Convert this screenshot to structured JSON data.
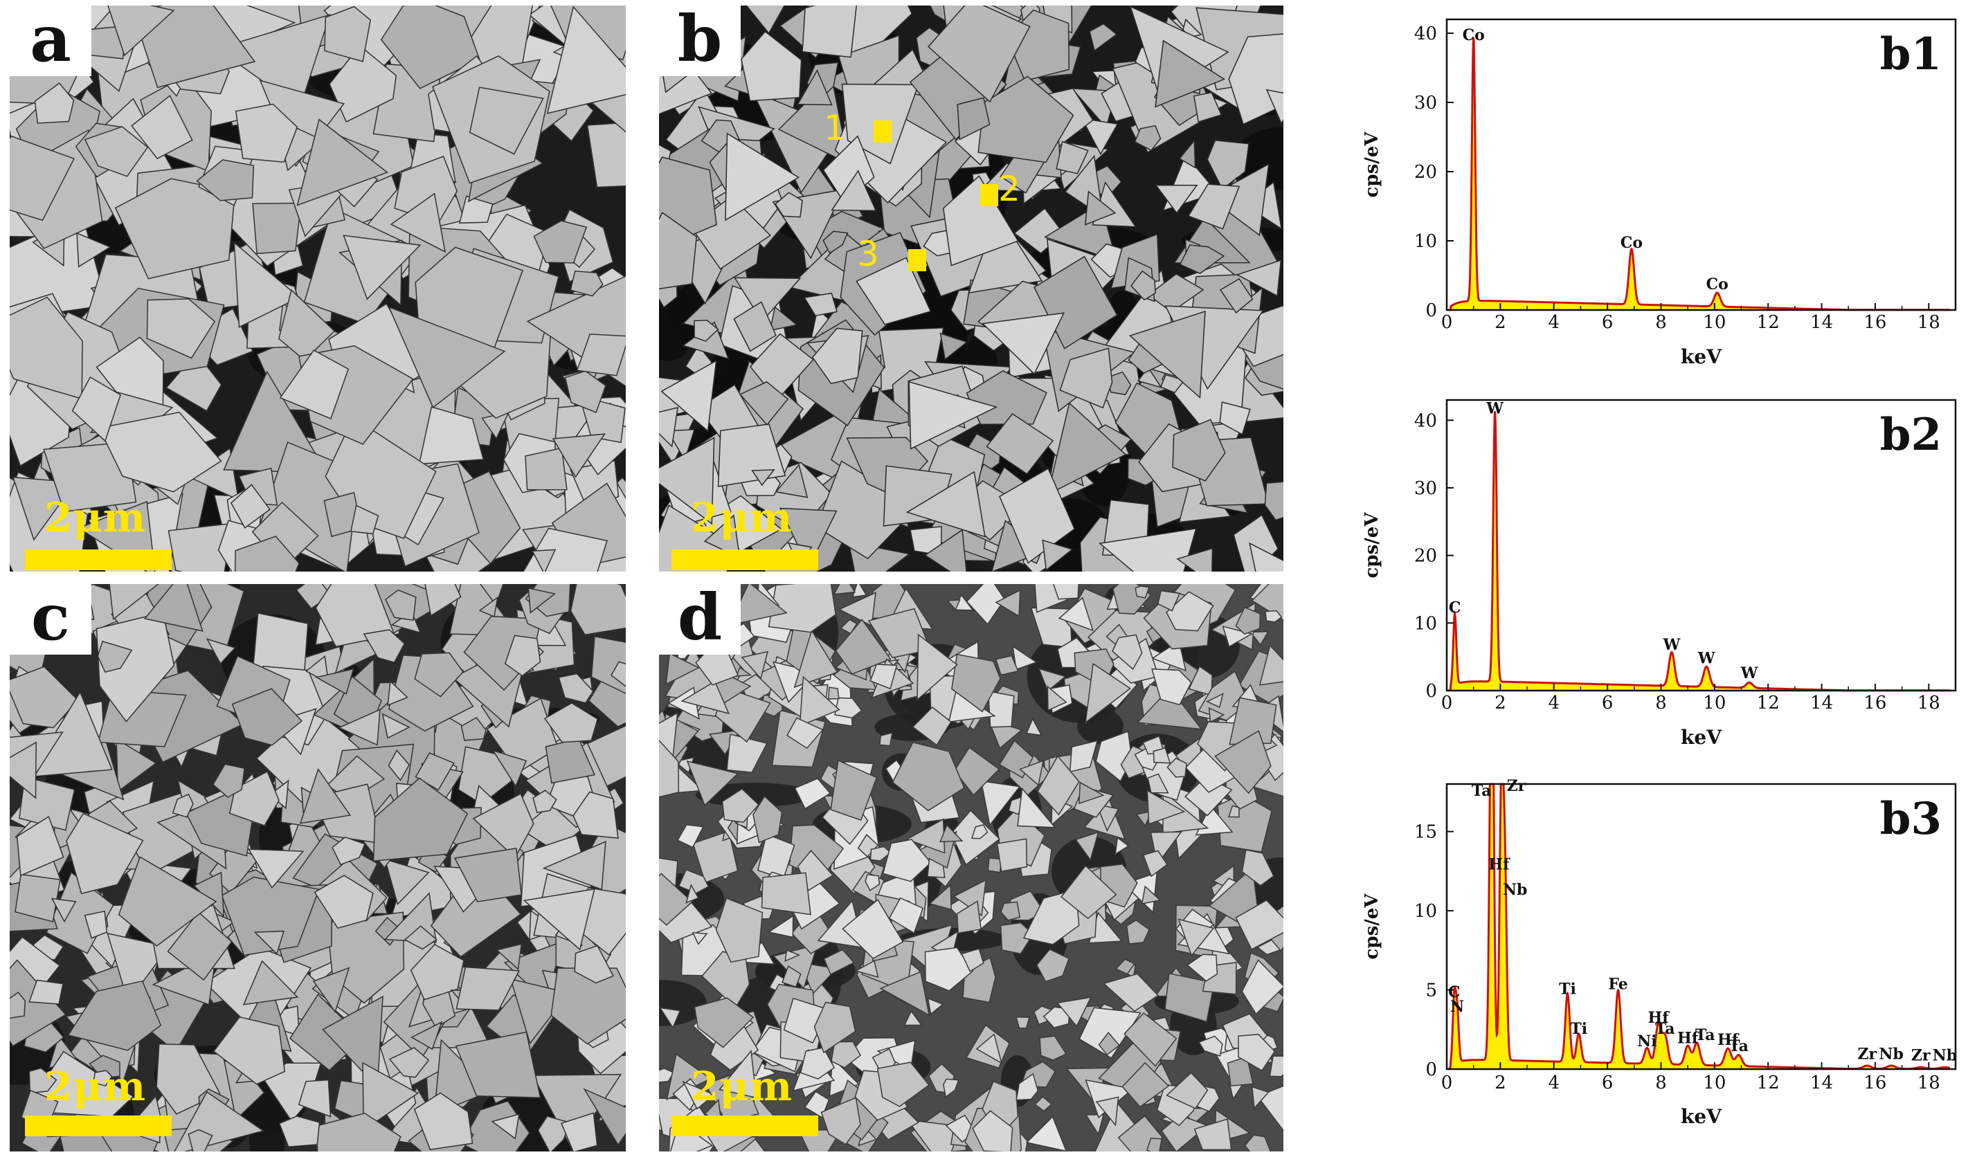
{
  "panels": [
    {
      "id": "a",
      "letter": "a",
      "scalebar": "2μm"
    },
    {
      "id": "b",
      "letter": "b",
      "scalebar": "2μm",
      "markers": [
        "1",
        "2",
        "3"
      ]
    },
    {
      "id": "c",
      "letter": "c",
      "scalebar": "2μm"
    },
    {
      "id": "d",
      "letter": "d",
      "scalebar": "2μm"
    }
  ],
  "colors": {
    "scalebar": "#ffe600",
    "peak_line": "#cc1111",
    "peak_fill": "#ffee00"
  },
  "chart_data": [
    {
      "id": "b1",
      "type": "area",
      "label": "b1",
      "xlabel": "keV",
      "ylabel": "cps/eV",
      "xlim": [
        0,
        19
      ],
      "ylim": [
        0,
        42
      ],
      "xticks": [
        0,
        2,
        4,
        6,
        8,
        10,
        12,
        14,
        16,
        18
      ],
      "yticks": [
        0,
        10,
        20,
        30,
        40
      ],
      "peaks": [
        {
          "label": "Co",
          "x": 1.0,
          "y": 38
        },
        {
          "label": "Co",
          "x": 6.9,
          "y": 8
        },
        {
          "label": "Co",
          "x": 10.1,
          "y": 2
        }
      ]
    },
    {
      "id": "b2",
      "type": "area",
      "label": "b2",
      "xlabel": "keV",
      "ylabel": "cps/eV",
      "xlim": [
        0,
        19
      ],
      "ylim": [
        0,
        43
      ],
      "xticks": [
        0,
        2,
        4,
        6,
        8,
        10,
        12,
        14,
        16,
        18
      ],
      "yticks": [
        0,
        10,
        20,
        30,
        40
      ],
      "peaks": [
        {
          "label": "C",
          "x": 0.3,
          "y": 10.5
        },
        {
          "label": "W",
          "x": 1.8,
          "y": 40
        },
        {
          "label": "W",
          "x": 8.4,
          "y": 5
        },
        {
          "label": "W",
          "x": 9.7,
          "y": 3
        },
        {
          "label": "W",
          "x": 11.3,
          "y": 0.8
        }
      ]
    },
    {
      "id": "b3",
      "type": "area",
      "label": "b3",
      "xlabel": "keV",
      "ylabel": "cps/eV",
      "xlim": [
        0,
        19
      ],
      "ylim": [
        0,
        18
      ],
      "xticks": [
        0,
        2,
        4,
        6,
        8,
        10,
        12,
        14,
        16,
        18
      ],
      "yticks": [
        0,
        5,
        10,
        15
      ],
      "peaks": [
        {
          "label": "C",
          "x": 0.28,
          "y": 4.1
        },
        {
          "label": "N",
          "x": 0.39,
          "y": 3.2
        },
        {
          "label": "Ti",
          "x": 4.51,
          "y": 4.3
        },
        {
          "label": "Ti",
          "x": 4.93,
          "y": 1.8
        },
        {
          "label": "Ta",
          "x": 1.71,
          "y": 17.5
        },
        {
          "label": "Zr",
          "x": 2.04,
          "y": 17.3
        },
        {
          "label": "Hf",
          "x": 1.64,
          "y": 13.2
        },
        {
          "label": "Nb",
          "x": 2.17,
          "y": 11.8
        },
        {
          "label": "Fe",
          "x": 6.4,
          "y": 4.6
        },
        {
          "label": "Ni",
          "x": 7.48,
          "y": 1.0
        },
        {
          "label": "Hf",
          "x": 7.9,
          "y": 2.5
        },
        {
          "label": "Ta",
          "x": 8.15,
          "y": 1.8
        },
        {
          "label": "Hf",
          "x": 9.0,
          "y": 1.2
        },
        {
          "label": "Ta",
          "x": 9.34,
          "y": 1.4
        },
        {
          "label": "Hf",
          "x": 10.5,
          "y": 1.1
        },
        {
          "label": "Ta",
          "x": 10.9,
          "y": 0.7
        },
        {
          "label": "Zr",
          "x": 15.7,
          "y": 0.2
        },
        {
          "label": "Nb",
          "x": 16.6,
          "y": 0.2
        },
        {
          "label": "Zr",
          "x": 17.7,
          "y": 0.1
        },
        {
          "label": "Nb",
          "x": 18.6,
          "y": 0.1
        }
      ]
    }
  ]
}
